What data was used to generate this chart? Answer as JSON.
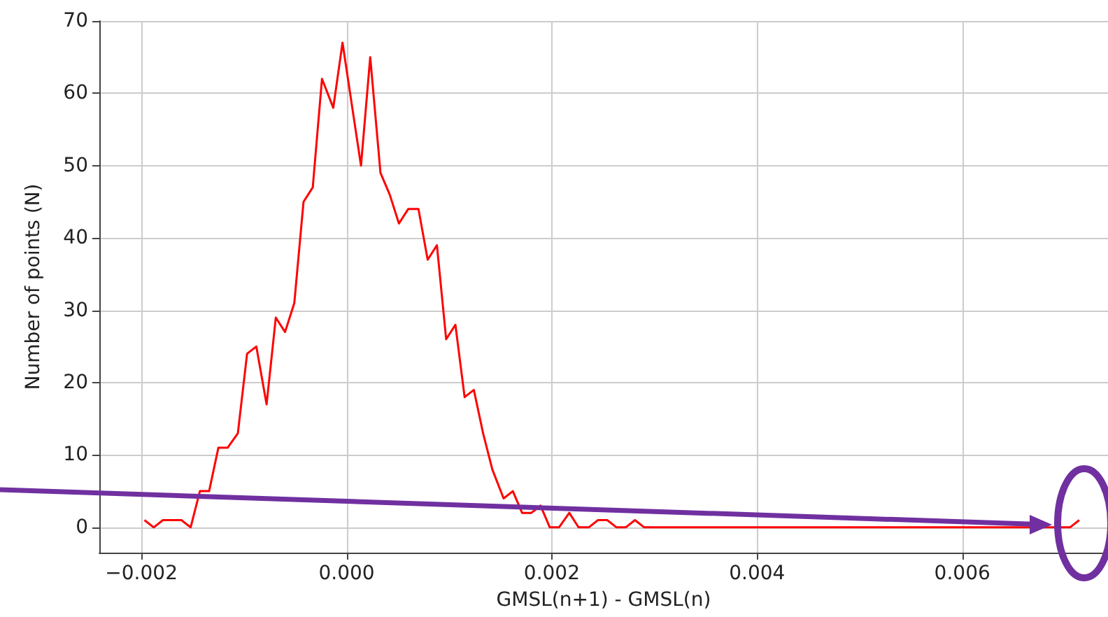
{
  "chart_data": {
    "type": "line",
    "xlabel": "GMSL(n+1) - GMSL(n)",
    "ylabel": "Number of points (N)",
    "x": [
      -0.00197,
      -0.00188,
      -0.00179,
      -0.00171,
      -0.00161,
      -0.00152,
      -0.00143,
      -0.00134,
      -0.00125,
      -0.00116,
      -0.00106,
      -0.00097,
      -0.00088,
      -0.00078,
      -0.00069,
      -0.0006,
      -0.00051,
      -0.00042,
      -0.00033,
      -0.00024,
      -0.00013,
      -4e-05,
      0.00014,
      0.00023,
      0.00033,
      0.00042,
      0.00051,
      0.0006,
      0.0007,
      0.00079,
      0.00088,
      0.00097,
      0.00106,
      0.00115,
      0.00124,
      0.00133,
      0.00142,
      0.00153,
      0.00162,
      0.00171,
      0.0018,
      0.00189,
      0.00198,
      0.00207,
      0.00217,
      0.00226,
      0.00236,
      0.00245,
      0.00254,
      0.00263,
      0.00272,
      0.00281,
      0.0029,
      0.00705,
      0.00714
    ],
    "series": [
      {
        "color": "#ff0000",
        "values": [
          1,
          0,
          1,
          1,
          1,
          0,
          5,
          5,
          11,
          11,
          13,
          24,
          25,
          17,
          29,
          27,
          31,
          45,
          47,
          62,
          58,
          67,
          50,
          65,
          49,
          46,
          42,
          44,
          44,
          37,
          39,
          26,
          28,
          18,
          19,
          13,
          8,
          4,
          5,
          2,
          2,
          3,
          0,
          0,
          2,
          0,
          0,
          1,
          1,
          0,
          0,
          1,
          0,
          0,
          1
        ]
      }
    ],
    "xlim": [
      -0.00241,
      0.00742
    ],
    "xticks": [
      {
        "value": -0.002,
        "label": "−0.002"
      },
      {
        "value": 0,
        "label": "0.000"
      },
      {
        "value": 0.002,
        "label": "0.002"
      },
      {
        "value": 0.004,
        "label": "0.004"
      },
      {
        "value": 0.006,
        "label": "0.006"
      }
    ],
    "ylim": [
      -3.5,
      70
    ],
    "yticks": [
      0,
      10,
      20,
      30,
      40,
      50,
      60,
      70
    ],
    "grid": true,
    "marker": "none",
    "line_style": "solid"
  }
}
